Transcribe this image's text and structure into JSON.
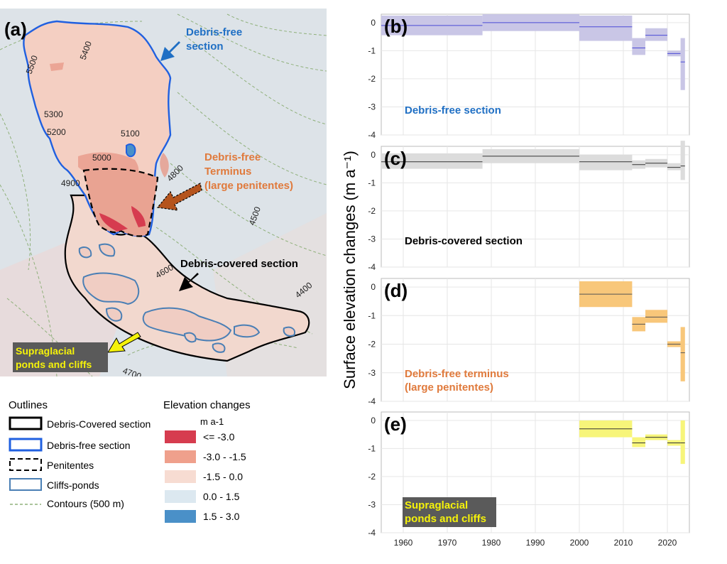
{
  "map": {
    "panel_label": "(a)",
    "annotations": {
      "debris_free_line1": "Debris-free",
      "debris_free_line2": "section",
      "terminus_line1": "Debris-free",
      "terminus_line2": "Terminus",
      "terminus_line3": "(large penitentes)",
      "debris_covered": "Debris-covered section",
      "ponds_line1": "Supraglacial",
      "ponds_line2": "ponds and cliffs"
    },
    "contours": [
      "5500",
      "5400",
      "5300",
      "5200",
      "5100",
      "5000",
      "4900",
      "4800",
      "4500",
      "4600",
      "4400",
      "4700"
    ],
    "colors": {
      "debris_free_text": "#1f6fc4",
      "terminus_text": "#e07a3c",
      "terminus_arrow": "#b5541d",
      "ponds_arrow": "#f5f20a",
      "outline_blue": "#2060e0",
      "cliff_blue": "#4a7fb5",
      "background_field": "#dde3e8",
      "glacier_fill": "#f4cfc2"
    }
  },
  "legend_outlines": {
    "title": "Outlines",
    "items": [
      "Debris-Covered section",
      "Debris-free section",
      "Penitentes",
      "Cliffs-ponds",
      "Contours (500 m)"
    ]
  },
  "legend_elevation": {
    "title": "Elevation changes",
    "unit": "m a-1",
    "items": [
      {
        "label": "<= -3.0",
        "color": "#d63c4f"
      },
      {
        "label": "-3.0 - -1.5",
        "color": "#efa08c"
      },
      {
        "label": "-1.5 - 0.0",
        "color": "#f7dcd2"
      },
      {
        "label": "0.0 - 1.5",
        "color": "#dce8f0"
      },
      {
        "label": "1.5 - 3.0",
        "color": "#4a90c8"
      }
    ]
  },
  "y_axis_title": "Surface elevation changes (m a⁻¹)",
  "chart_data": [
    {
      "type": "bar",
      "panel": "(b)",
      "label": "Debris-free section",
      "label_color": "#1f6fc4",
      "fill": "#c9c6e6",
      "line": "#4a4ad6",
      "xlim": [
        1955,
        2025
      ],
      "ylim": [
        -4,
        0.3
      ],
      "yticks": [
        0,
        -1,
        -2,
        -3,
        -4
      ],
      "xticks": [
        1960,
        1970,
        1980,
        1990,
        2000,
        2010,
        2020
      ],
      "periods": [
        {
          "start": 1955,
          "end": 1978,
          "value": -0.1,
          "low": -0.45,
          "high": 0.25
        },
        {
          "start": 1978,
          "end": 2000,
          "value": 0.0,
          "low": -0.3,
          "high": 0.3
        },
        {
          "start": 2000,
          "end": 2012,
          "value": -0.15,
          "low": -0.65,
          "high": 0.25
        },
        {
          "start": 2012,
          "end": 2015,
          "value": -0.9,
          "low": -1.15,
          "high": -0.55
        },
        {
          "start": 2015,
          "end": 2020,
          "value": -0.45,
          "low": -0.65,
          "high": -0.2
        },
        {
          "start": 2020,
          "end": 2023,
          "value": -1.1,
          "low": -1.2,
          "high": -1.0
        },
        {
          "start": 2023,
          "end": 2024,
          "value": -1.4,
          "low": -2.4,
          "high": -0.55
        }
      ]
    },
    {
      "type": "bar",
      "panel": "(c)",
      "label": "Debris-covered section",
      "label_color": "#000000",
      "fill": "#dcdcdc",
      "line": "#333333",
      "xlim": [
        1955,
        2025
      ],
      "ylim": [
        -4,
        0.3
      ],
      "yticks": [
        0,
        -1,
        -2,
        -3,
        -4
      ],
      "xticks": [
        1960,
        1970,
        1980,
        1990,
        2000,
        2010,
        2020
      ],
      "periods": [
        {
          "start": 1955,
          "end": 1978,
          "value": -0.25,
          "low": -0.5,
          "high": 0.05
        },
        {
          "start": 1978,
          "end": 2000,
          "value": -0.05,
          "low": -0.3,
          "high": 0.2
        },
        {
          "start": 2000,
          "end": 2012,
          "value": -0.25,
          "low": -0.55,
          "high": 0.0
        },
        {
          "start": 2012,
          "end": 2015,
          "value": -0.35,
          "low": -0.5,
          "high": -0.2
        },
        {
          "start": 2015,
          "end": 2020,
          "value": -0.3,
          "low": -0.45,
          "high": -0.15
        },
        {
          "start": 2020,
          "end": 2023,
          "value": -0.45,
          "low": -0.55,
          "high": -0.3
        },
        {
          "start": 2023,
          "end": 2024,
          "value": -0.4,
          "low": -0.9,
          "high": 0.5
        }
      ]
    },
    {
      "type": "bar",
      "panel": "(d)",
      "label_line1": "Debris-free terminus",
      "label_line2": "(large penitentes)",
      "label_color": "#e07a3c",
      "fill": "#f8c77a",
      "line": "#555555",
      "xlim": [
        1955,
        2025
      ],
      "ylim": [
        -4,
        0.3
      ],
      "yticks": [
        0,
        -1,
        -2,
        -3,
        -4
      ],
      "xticks": [
        1960,
        1970,
        1980,
        1990,
        2000,
        2010,
        2020
      ],
      "periods": [
        {
          "start": 2000,
          "end": 2012,
          "value": -0.25,
          "low": -0.7,
          "high": 0.2
        },
        {
          "start": 2012,
          "end": 2015,
          "value": -1.3,
          "low": -1.55,
          "high": -1.05
        },
        {
          "start": 2015,
          "end": 2020,
          "value": -1.05,
          "low": -1.25,
          "high": -0.8
        },
        {
          "start": 2020,
          "end": 2023,
          "value": -2.0,
          "low": -2.1,
          "high": -1.9
        },
        {
          "start": 2023,
          "end": 2024,
          "value": -2.3,
          "low": -3.3,
          "high": -1.4
        }
      ]
    },
    {
      "type": "bar",
      "panel": "(e)",
      "label_line1": "Supraglacial",
      "label_line2": "ponds and cliffs",
      "label_color": "#f5f20a",
      "label_bg": "#5a5a5a",
      "fill": "#f7f57a",
      "line": "#333333",
      "xlim": [
        1955,
        2025
      ],
      "ylim": [
        -4,
        0.3
      ],
      "yticks": [
        0,
        -1,
        -2,
        -3,
        -4
      ],
      "xticks": [
        1960,
        1970,
        1980,
        1990,
        2000,
        2010,
        2020
      ],
      "periods": [
        {
          "start": 2000,
          "end": 2012,
          "value": -0.3,
          "low": -0.6,
          "high": 0.0
        },
        {
          "start": 2012,
          "end": 2015,
          "value": -0.8,
          "low": -0.95,
          "high": -0.6
        },
        {
          "start": 2015,
          "end": 2020,
          "value": -0.6,
          "low": -0.7,
          "high": -0.5
        },
        {
          "start": 2020,
          "end": 2023,
          "value": -0.8,
          "low": -0.9,
          "high": -0.7
        },
        {
          "start": 2023,
          "end": 2024,
          "value": -0.8,
          "low": -1.55,
          "high": 0.0
        }
      ]
    }
  ]
}
